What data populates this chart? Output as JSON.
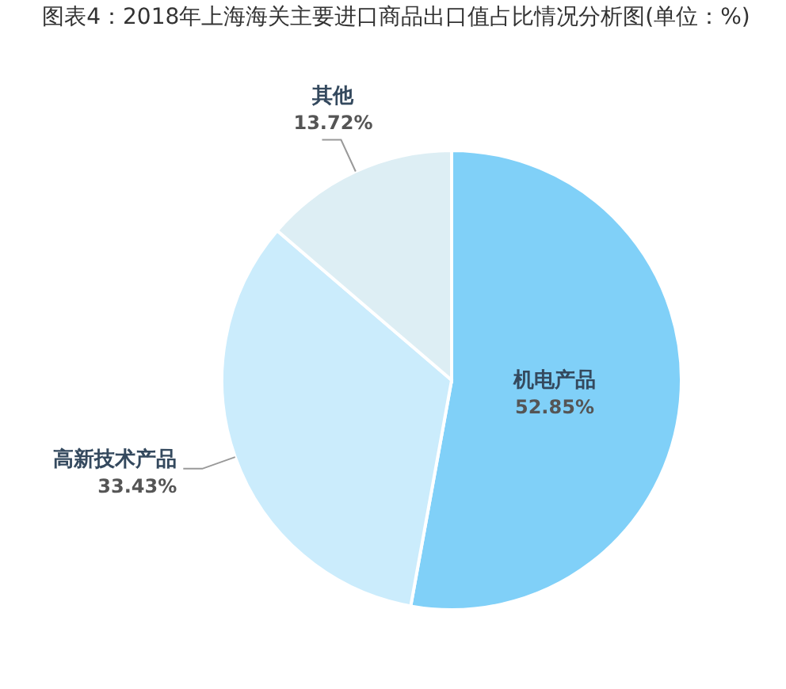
{
  "chart_data": {
    "type": "pie",
    "title": "图表4：2018年上海海关主要进口商品出口值占比情况分析图(单位：%)",
    "categories": [
      "机电产品",
      "高新技术产品",
      "其他"
    ],
    "values": [
      52.85,
      33.43,
      13.72
    ],
    "colors": [
      "#80d0f8",
      "#cbecfc",
      "#ddeef4"
    ],
    "value_labels": [
      "52.85%",
      "33.43%",
      "13.72%"
    ]
  }
}
